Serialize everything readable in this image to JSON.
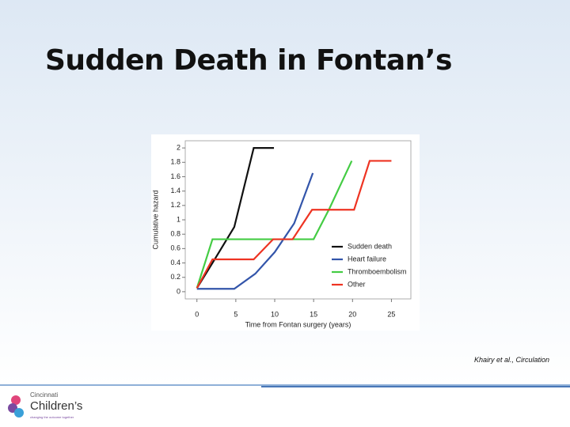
{
  "slide": {
    "title": "Sudden Death in Fontan’s",
    "citation": "Khairy et al., Circulation",
    "logo": {
      "line1": "Cincinnati",
      "line2": "Children’s",
      "tagline": "changing the outcome together"
    }
  },
  "chart_data": {
    "type": "line",
    "ylabel": "Cumulative hazard",
    "xlabel": "Time from Fontan surgery (years)",
    "xlim": [
      -1.5,
      27.5
    ],
    "ylim": [
      -0.1,
      2.1
    ],
    "xticks": [
      0,
      5,
      10,
      15,
      20,
      25
    ],
    "yticks": [
      0,
      0.2,
      0.4,
      0.6,
      0.8,
      1,
      1.2,
      1.4,
      1.6,
      1.8,
      2
    ],
    "legend": "lower right",
    "series": [
      {
        "name": "Sudden death",
        "color": "#111111",
        "x": [
          0,
          2,
          4.8,
          7.3,
          9.9
        ],
        "values": [
          0.05,
          0.4,
          0.9,
          2.0,
          2.0
        ]
      },
      {
        "name": "Heart failure",
        "color": "#3355aa",
        "x": [
          0,
          4.8,
          7.5,
          10,
          12.5,
          14.9
        ],
        "values": [
          0.04,
          0.04,
          0.25,
          0.55,
          0.95,
          1.65
        ]
      },
      {
        "name": "Thromboembolism",
        "color": "#44cc44",
        "x": [
          0,
          2,
          15,
          17,
          19.9
        ],
        "values": [
          0.05,
          0.73,
          0.73,
          1.15,
          1.82
        ]
      },
      {
        "name": "Other",
        "color": "#ee3322",
        "x": [
          0,
          2,
          7.3,
          9.8,
          12.3,
          14.8,
          20.2,
          22.2,
          25
        ],
        "values": [
          0.05,
          0.45,
          0.45,
          0.73,
          0.73,
          1.14,
          1.14,
          1.82,
          1.82
        ]
      }
    ]
  }
}
